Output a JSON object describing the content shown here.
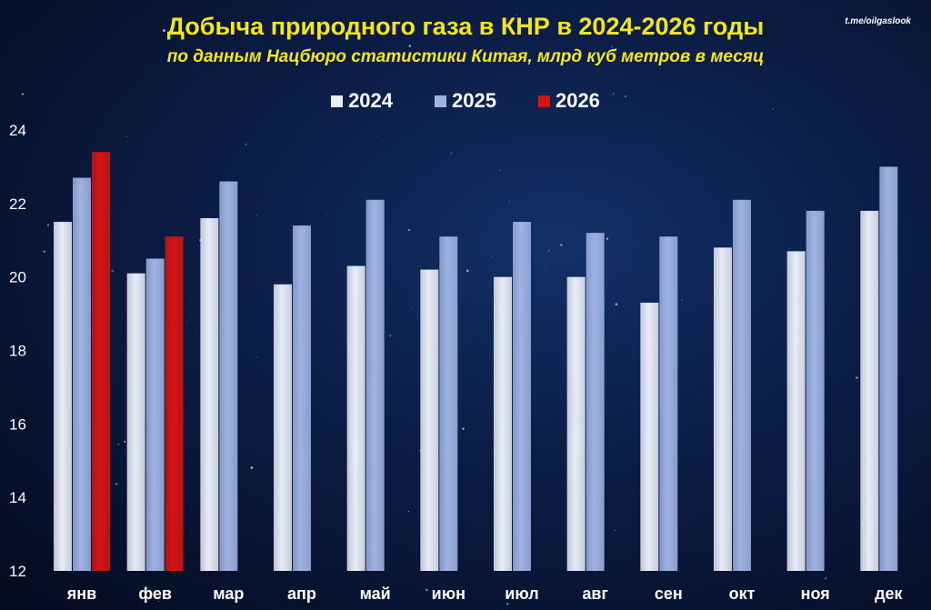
{
  "watermark": "t.me/oilgaslook",
  "chart_data": {
    "type": "bar",
    "title": "Добыча природного газа в КНР в 2024-2026 годы",
    "subtitle": "по данным Нацбюро статистики Китая, млрд куб метров в месяц",
    "categories": [
      "янв",
      "фев",
      "мар",
      "апр",
      "май",
      "июн",
      "июл",
      "авг",
      "сен",
      "окт",
      "ноя",
      "дек"
    ],
    "series": [
      {
        "name": "2024",
        "color": "#e8ecf7",
        "values": [
          21.5,
          20.1,
          21.6,
          19.8,
          20.3,
          20.2,
          20.0,
          20.0,
          19.3,
          20.8,
          20.7,
          21.8
        ]
      },
      {
        "name": "2025",
        "color": "#9fb3e3",
        "values": [
          22.7,
          20.5,
          22.6,
          21.4,
          22.1,
          21.1,
          21.5,
          21.2,
          21.1,
          22.1,
          21.8,
          23.0
        ]
      },
      {
        "name": "2026",
        "color": "#d41414",
        "values": [
          23.4,
          21.1,
          null,
          null,
          null,
          null,
          null,
          null,
          null,
          null,
          null,
          null
        ]
      }
    ],
    "ylim": [
      12,
      24
    ],
    "yticks": [
      12,
      14,
      16,
      18,
      20,
      22,
      24
    ],
    "grid": false,
    "legend": "top-center"
  }
}
